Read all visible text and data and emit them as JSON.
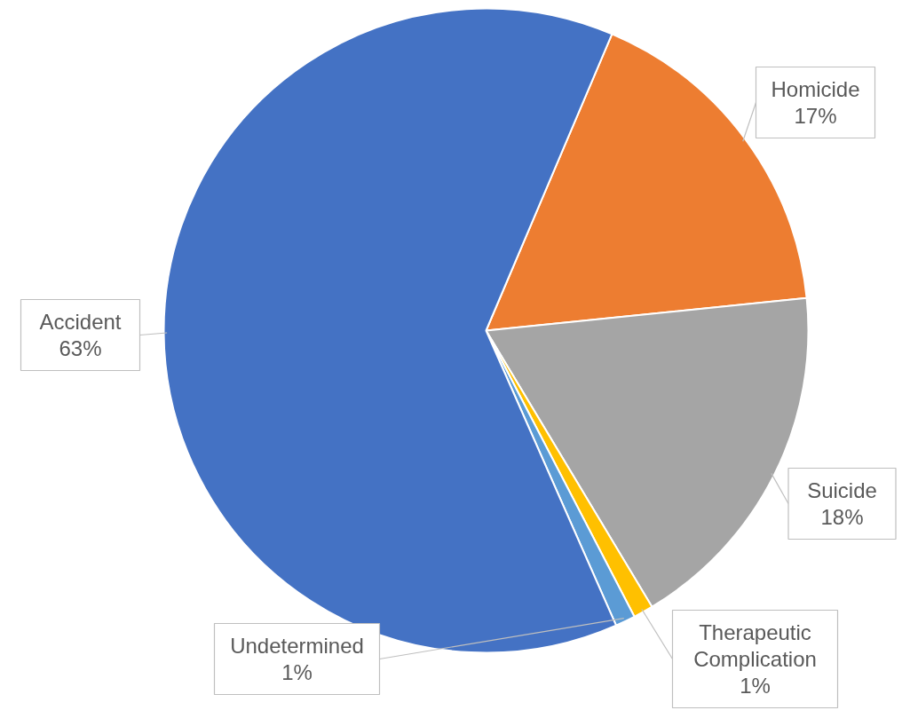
{
  "chart_data": {
    "type": "pie",
    "categories": [
      "Homicide",
      "Suicide",
      "Therapeutic Complication",
      "Undetermined",
      "Accident"
    ],
    "values": [
      17,
      18,
      1,
      1,
      63
    ],
    "colors": [
      "#ed7d31",
      "#a5a5a5",
      "#ffc000",
      "#5b9bd5",
      "#4472c4"
    ],
    "value_labels": [
      "17%",
      "18%",
      "1%",
      "1%",
      "63%"
    ]
  }
}
